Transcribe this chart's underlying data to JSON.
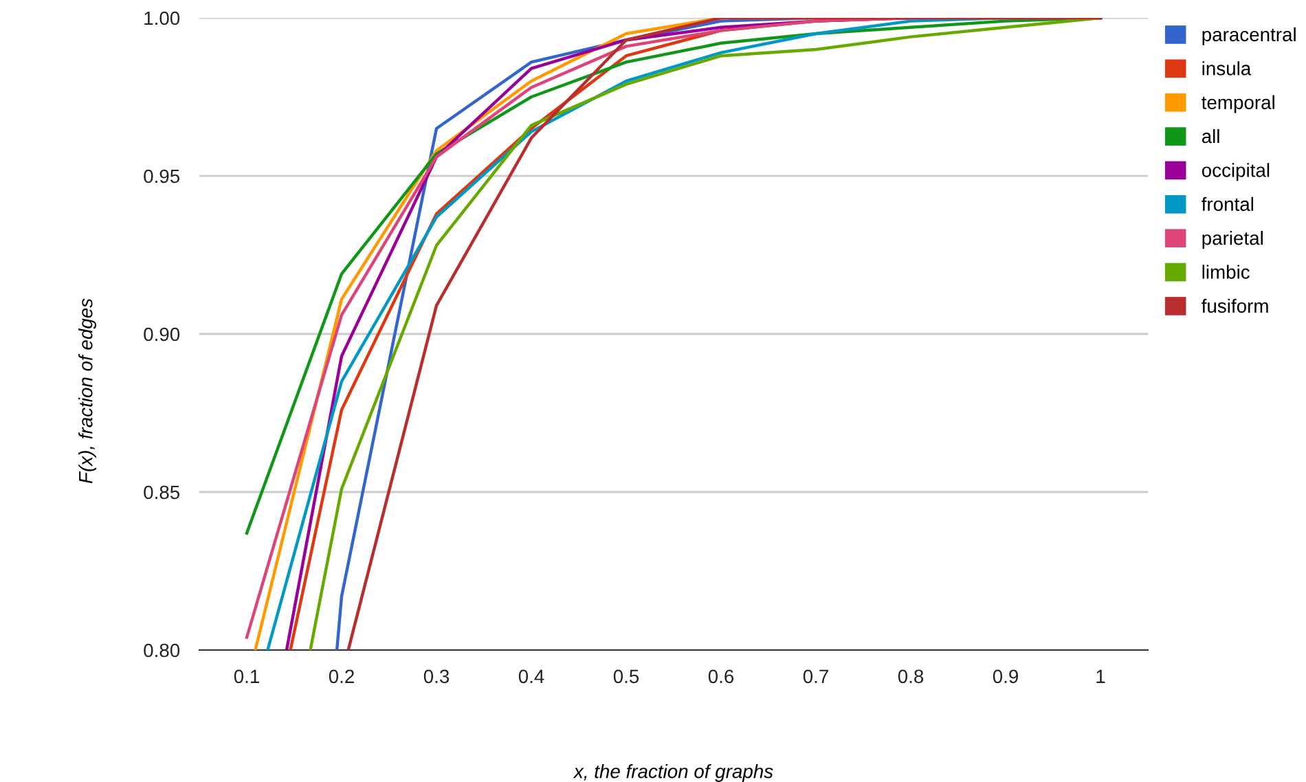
{
  "chart_data": {
    "type": "line",
    "xlabel": "x, the fraction of graphs",
    "ylabel": "F(x), fraction of edges",
    "xlim": [
      0.05,
      1.05
    ],
    "xticks": [
      {
        "value": 0.1,
        "label": "0.1"
      },
      {
        "value": 0.2,
        "label": "0.2"
      },
      {
        "value": 0.3,
        "label": "0.3"
      },
      {
        "value": 0.4,
        "label": "0.4"
      },
      {
        "value": 0.5,
        "label": "0.5"
      },
      {
        "value": 0.6,
        "label": "0.6"
      },
      {
        "value": 0.7,
        "label": "0.7"
      },
      {
        "value": 0.8,
        "label": "0.8"
      },
      {
        "value": 0.9,
        "label": "0.9"
      },
      {
        "value": 1,
        "label": "1"
      }
    ],
    "ylim": [
      0.8,
      1.0
    ],
    "yticks": [
      {
        "value": 0.8,
        "label": "0.80"
      },
      {
        "value": 0.85,
        "label": "0.85"
      },
      {
        "value": 0.9,
        "label": "0.90"
      },
      {
        "value": 0.95,
        "label": "0.95"
      },
      {
        "value": 1.0,
        "label": "1.00"
      }
    ],
    "grid": "y",
    "legend": "top right",
    "marker": "none",
    "line_style": "solid",
    "series": [
      {
        "name": "paracentral",
        "color": "#3366cc",
        "x": [
          0.195,
          0.2,
          0.3,
          0.4,
          0.5,
          0.6,
          0.7,
          0.8,
          0.9,
          1
        ],
        "values": [
          0.8,
          0.817,
          0.965,
          0.986,
          0.993,
          0.999,
          1.0,
          1.0,
          1.0,
          1.0
        ]
      },
      {
        "name": "insula",
        "color": "#dc3912",
        "x": [
          0.146,
          0.2,
          0.3,
          0.4,
          0.5,
          0.6,
          0.7,
          0.8,
          0.9,
          1
        ],
        "values": [
          0.8,
          0.876,
          0.938,
          0.965,
          0.988,
          0.996,
          0.999,
          1.0,
          1.0,
          1.0
        ]
      },
      {
        "name": "temporal",
        "color": "#ff9900",
        "x": [
          0.109,
          0.2,
          0.3,
          0.4,
          0.5,
          0.6,
          0.7
        ],
        "values": [
          0.8,
          0.911,
          0.958,
          0.98,
          0.995,
          1.0,
          1.0
        ]
      },
      {
        "name": "all",
        "color": "#109618",
        "x": [
          0.1,
          0.2,
          0.3,
          0.4,
          0.5,
          0.6,
          0.7,
          0.8,
          0.9,
          1
        ],
        "values": [
          0.837,
          0.919,
          0.957,
          0.975,
          0.986,
          0.992,
          0.995,
          0.997,
          0.999,
          1.0
        ]
      },
      {
        "name": "occipital",
        "color": "#990099",
        "x": [
          0.142,
          0.2,
          0.3,
          0.4,
          0.5,
          0.6,
          0.7,
          0.8
        ],
        "values": [
          0.8,
          0.893,
          0.956,
          0.984,
          0.993,
          0.997,
          0.999,
          1.0
        ]
      },
      {
        "name": "frontal",
        "color": "#0099c6",
        "x": [
          0.122,
          0.2,
          0.3,
          0.4,
          0.5,
          0.6,
          0.7,
          0.8,
          0.9,
          1
        ],
        "values": [
          0.8,
          0.885,
          0.937,
          0.964,
          0.98,
          0.989,
          0.995,
          0.999,
          1.0,
          1.0
        ]
      },
      {
        "name": "parietal",
        "color": "#dd4477",
        "x": [
          0.1,
          0.2,
          0.3,
          0.4,
          0.5,
          0.6,
          0.7,
          0.8,
          0.9,
          1
        ],
        "values": [
          0.804,
          0.906,
          0.956,
          0.978,
          0.991,
          0.996,
          0.999,
          1.0,
          1.0,
          1.0
        ]
      },
      {
        "name": "limbic",
        "color": "#66aa00",
        "x": [
          0.167,
          0.2,
          0.3,
          0.4,
          0.5,
          0.6,
          0.7,
          0.8,
          0.9,
          1
        ],
        "values": [
          0.8,
          0.851,
          0.928,
          0.966,
          0.979,
          0.988,
          0.99,
          0.994,
          0.997,
          1.0
        ]
      },
      {
        "name": "fusiform",
        "color": "#b82e2e",
        "x": [
          0.207,
          0.3,
          0.4,
          0.5,
          0.6,
          0.7,
          0.8,
          0.9,
          1
        ],
        "values": [
          0.8,
          0.909,
          0.962,
          0.993,
          1.0,
          1.0,
          1.0,
          1.0,
          1.0
        ]
      }
    ]
  }
}
